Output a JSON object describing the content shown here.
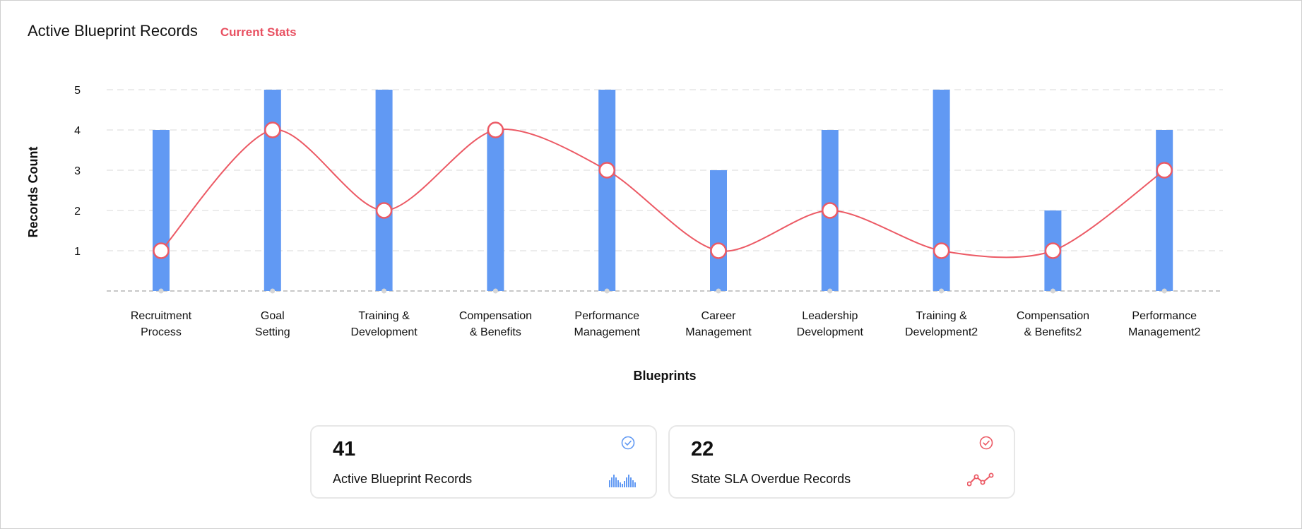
{
  "header": {
    "title": "Active Blueprint Records",
    "subtitle": "Current Stats"
  },
  "colors": {
    "bar": "#6199f3",
    "line": "#ec5a65",
    "grid": "#e6e6e6",
    "axis": "#c8c8c8",
    "text": "#111111"
  },
  "chart_data": {
    "type": "bar",
    "categories": [
      [
        "Recruitment",
        "Process"
      ],
      [
        "Goal",
        "Setting"
      ],
      [
        "Training &",
        "Development"
      ],
      [
        "Compensation",
        "& Benefits"
      ],
      [
        "Performance",
        "Management"
      ],
      [
        "Career",
        "Management"
      ],
      [
        "Leadership",
        "Development"
      ],
      [
        "Training &",
        "Development2"
      ],
      [
        "Compensation",
        "& Benefits2"
      ],
      [
        "Performance",
        "Management2"
      ]
    ],
    "series": [
      {
        "type": "bar",
        "values": [
          4,
          5,
          5,
          4,
          5,
          3,
          4,
          5,
          2,
          4
        ]
      },
      {
        "type": "line",
        "values": [
          1,
          4,
          2,
          4,
          3,
          1,
          2,
          1,
          1,
          3
        ]
      }
    ],
    "xlabel": "Blueprints",
    "ylabel": "Records Count",
    "ylim": [
      0,
      5
    ],
    "yticks": [
      1,
      2,
      3,
      4,
      5
    ],
    "grid": true,
    "legend": "none"
  },
  "cards": [
    {
      "value": "41",
      "label": "Active Blueprint Records",
      "icon": "check-circle-icon",
      "spark": "bar-sparkline-icon",
      "color": "#6199f3"
    },
    {
      "value": "22",
      "label": "State SLA Overdue Records",
      "icon": "check-circle-icon",
      "spark": "line-sparkline-icon",
      "color": "#ec5a65"
    }
  ]
}
